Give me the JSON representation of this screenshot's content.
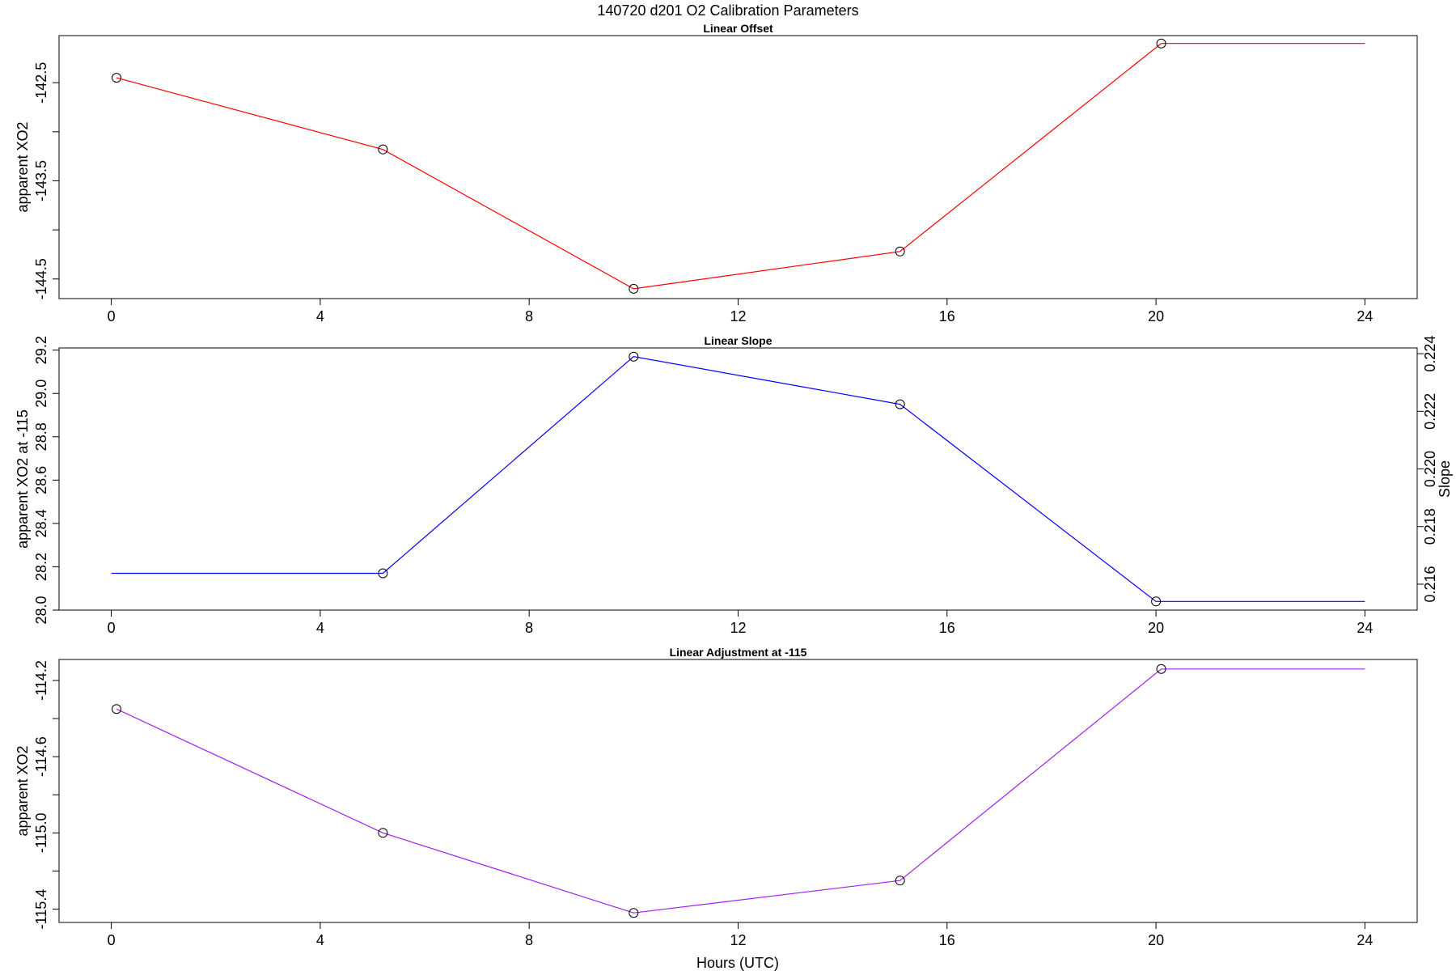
{
  "title": "140720   d201   O2 Calibration Parameters",
  "xlabel": "Hours (UTC)",
  "chart_data": [
    {
      "type": "line",
      "title": "Linear Offset",
      "color": "#ff0000",
      "x": [
        0.1,
        5.2,
        10.0,
        15.1,
        20.1,
        24.0
      ],
      "y": [
        -142.45,
        -143.18,
        -144.6,
        -144.22,
        -142.1,
        -142.1
      ],
      "markers": [
        true,
        true,
        true,
        true,
        true,
        false
      ],
      "xlim": [
        -1.0,
        25.0
      ],
      "ylim": [
        -144.7,
        -142.02
      ],
      "xticks": [
        0,
        4,
        8,
        12,
        16,
        20,
        24
      ],
      "xtick_labels": [
        "0",
        "4",
        "8",
        "12",
        "16",
        "20",
        "24"
      ],
      "yticks": [
        -142.5,
        -143.0,
        -143.5,
        -144.0,
        -144.5
      ],
      "ytick_labels": [
        "-142.5",
        "",
        "-143.5",
        "",
        "-144.5"
      ],
      "ylabel": "apparent XO2",
      "ylabel_right": "",
      "grid": false
    },
    {
      "type": "line",
      "title": "Linear Slope",
      "color": "#0000ff",
      "x": [
        0.0,
        5.2,
        10.0,
        15.1,
        20.0,
        24.0
      ],
      "y": [
        28.17,
        28.17,
        29.17,
        28.95,
        28.04,
        28.04
      ],
      "markers": [
        false,
        true,
        true,
        true,
        true,
        false
      ],
      "xlim": [
        -1.0,
        25.0
      ],
      "ylim": [
        28.0,
        29.21
      ],
      "xticks": [
        0,
        4,
        8,
        12,
        16,
        20,
        24
      ],
      "xtick_labels": [
        "0",
        "4",
        "8",
        "12",
        "16",
        "20",
        "24"
      ],
      "yticks": [
        28.0,
        28.2,
        28.4,
        28.6,
        28.8,
        29.0,
        29.2
      ],
      "ytick_labels": [
        "28.0",
        "28.2",
        "28.4",
        "28.6",
        "28.8",
        "29.0",
        "29.2"
      ],
      "ylabel": "apparent XO2 at -115",
      "right_axis": {
        "label": "Slope",
        "ticks": [
          0.216,
          0.218,
          0.22,
          0.222,
          0.224
        ],
        "tick_labels": [
          "0.216",
          "0.218",
          "0.220",
          "0.222",
          "0.224"
        ],
        "ylim": [
          0.2151,
          0.2242
        ]
      },
      "grid": false
    },
    {
      "type": "line",
      "title": "Linear Adjustment at -115",
      "color": "#a020f0",
      "x": [
        0.1,
        5.2,
        10.0,
        15.1,
        20.1,
        24.0
      ],
      "y": [
        -114.35,
        -115.0,
        -115.42,
        -115.25,
        -114.14,
        -114.14
      ],
      "markers": [
        true,
        true,
        true,
        true,
        true,
        false
      ],
      "xlim": [
        -1.0,
        25.0
      ],
      "ylim": [
        -115.47,
        -114.09
      ],
      "xticks": [
        0,
        4,
        8,
        12,
        16,
        20,
        24
      ],
      "xtick_labels": [
        "0",
        "4",
        "8",
        "12",
        "16",
        "20",
        "24"
      ],
      "yticks": [
        -114.2,
        -114.4,
        -114.6,
        -114.8,
        -115.0,
        -115.2,
        -115.4
      ],
      "ytick_labels": [
        "-114.2",
        "",
        "-114.6",
        "",
        "-115.0",
        "",
        "-115.4"
      ],
      "ylabel": "apparent XO2",
      "ylabel_right": "",
      "grid": false
    }
  ]
}
